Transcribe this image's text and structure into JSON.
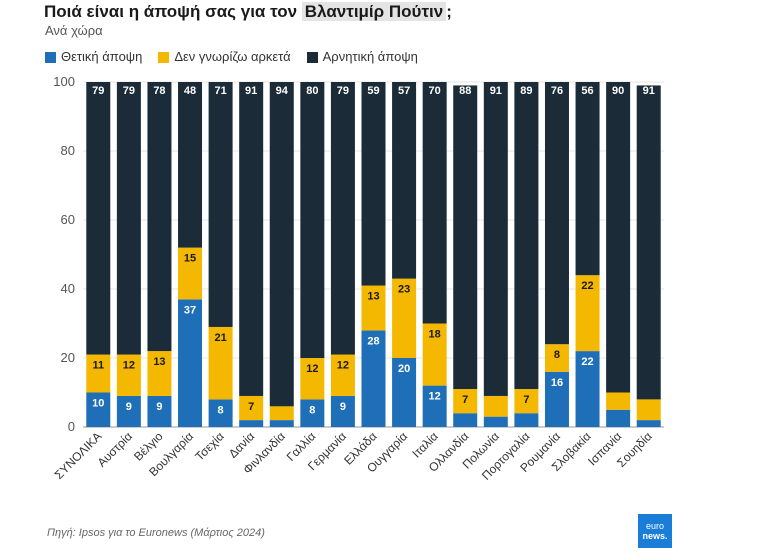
{
  "title_main": "Ποιά είναι η άποψή σας για τον",
  "title_highlight": "Βλαντιμίρ Πούτιν",
  "title_end": ";",
  "subtitle": "Ανά χώρα",
  "source": "Πηγή: Ipsos για το Euronews (Μάρτιος 2024)",
  "logo": {
    "line1": "euro",
    "line2": "news."
  },
  "chart_data": {
    "type": "bar",
    "stacked": true,
    "title": "Ποιά είναι η άποψή σας για τον Βλαντιμίρ Πούτιν;",
    "subtitle": "Ανά χώρα",
    "categories": [
      "ΣΥΝΟΛΙΚΑ",
      "Αυστρία",
      "Βέλγιο",
      "Βουλγαρία",
      "Τσεχία",
      "Δανία",
      "Φινλανδία",
      "Γαλλία",
      "Γερμανία",
      "Ελλάδα",
      "Ουγγαρία",
      "Ιταλία",
      "Ολλανδία",
      "Πολωνία",
      "Πορτογαλία",
      "Ρουμανία",
      "Σλοβακία",
      "Ισπανία",
      "Σουηδία"
    ],
    "series": [
      {
        "name": "Θετική άποψη",
        "color": "#1f6fb8",
        "values": [
          10,
          9,
          9,
          37,
          8,
          2,
          2,
          8,
          9,
          28,
          20,
          12,
          4,
          3,
          4,
          16,
          22,
          5,
          2
        ],
        "labels": [
          "10",
          "9",
          "9",
          "37",
          "8",
          "",
          "",
          "8",
          "9",
          "28",
          "20",
          "12",
          "",
          "",
          "",
          "16",
          "22",
          "",
          ""
        ]
      },
      {
        "name": "Δεν γνωρίζω αρκετά",
        "color": "#f5b800",
        "values": [
          11,
          12,
          13,
          15,
          21,
          7,
          4,
          12,
          12,
          13,
          23,
          18,
          7,
          6,
          7,
          8,
          22,
          5,
          6
        ],
        "labels": [
          "11",
          "12",
          "13",
          "15",
          "21",
          "7",
          "",
          "12",
          "12",
          "13",
          "23",
          "18",
          "7",
          "",
          "7",
          "8",
          "22",
          "",
          ""
        ]
      },
      {
        "name": "Αρνητική άποψη",
        "color": "#1b2b38",
        "values": [
          79,
          79,
          78,
          48,
          71,
          91,
          94,
          80,
          79,
          59,
          57,
          70,
          88,
          91,
          89,
          76,
          56,
          90,
          91
        ],
        "labels": [
          "79",
          "79",
          "78",
          "48",
          "71",
          "91",
          "94",
          "80",
          "79",
          "59",
          "57",
          "70",
          "88",
          "91",
          "89",
          "76",
          "56",
          "90",
          "91"
        ]
      }
    ],
    "ylim": [
      0,
      100
    ],
    "yticks": [
      0,
      20,
      40,
      60,
      80,
      100
    ],
    "grid": true,
    "legend_position": "top-left"
  }
}
